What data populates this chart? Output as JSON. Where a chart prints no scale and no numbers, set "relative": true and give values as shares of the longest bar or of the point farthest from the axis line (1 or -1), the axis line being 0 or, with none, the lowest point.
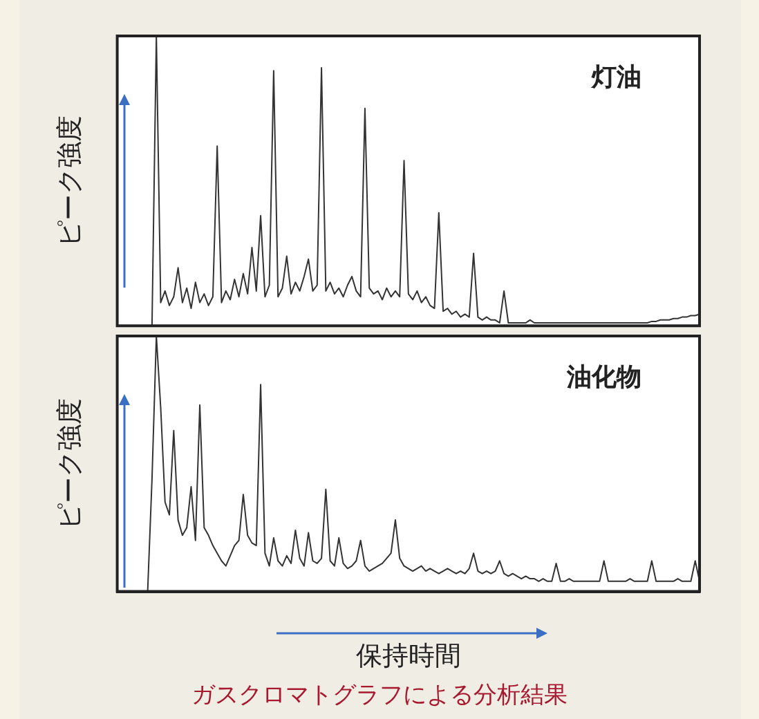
{
  "chart_data": [
    {
      "type": "line",
      "relative": true,
      "ylabel": "ピーク強度",
      "annotations": [
        "灯油"
      ],
      "legend": false,
      "marker": "none",
      "categories": [
        null,
        null,
        null,
        null,
        null,
        null,
        null,
        null,
        null,
        null,
        null,
        null,
        null,
        null,
        null,
        null,
        null,
        null,
        null,
        null,
        null,
        null,
        null,
        null,
        null,
        null,
        null,
        null,
        null,
        null,
        null,
        null,
        null,
        null,
        null,
        null,
        null,
        null,
        null,
        null,
        null,
        null,
        null,
        null,
        null,
        null,
        null,
        null,
        null,
        null,
        null,
        null,
        null,
        null,
        null,
        null,
        null,
        null,
        null,
        null,
        null,
        null,
        null,
        null,
        null,
        null,
        null,
        null,
        null,
        null,
        null,
        null,
        null,
        null,
        null,
        null,
        null,
        null,
        null,
        null,
        null,
        null,
        null,
        null,
        null,
        null,
        null,
        null,
        null,
        null,
        null,
        null,
        null,
        null,
        null,
        null,
        null,
        null,
        null,
        null,
        null,
        null,
        null,
        null,
        null,
        null,
        null,
        null,
        null,
        null,
        null,
        null,
        null,
        null,
        null,
        null,
        null,
        null,
        null,
        null,
        null,
        null,
        null,
        null,
        null,
        null,
        null,
        null,
        null,
        null,
        null,
        null,
        null,
        null,
        null
      ],
      "series": [
        {
          "color": "#333333",
          "values": [
            0,
            0,
            0,
            0,
            0,
            0,
            0,
            0,
            0,
            1,
            0.08,
            0.12,
            0.07,
            0.1,
            0.2,
            0.08,
            0.13,
            0.06,
            0.15,
            0.08,
            0.11,
            0.07,
            0.1,
            0.62,
            0.08,
            0.12,
            0.09,
            0.16,
            0.1,
            0.18,
            0.11,
            0.27,
            0.12,
            0.38,
            0.1,
            0.14,
            0.88,
            0.1,
            0.13,
            0.24,
            0.11,
            0.15,
            0.12,
            0.17,
            0.23,
            0.12,
            0.14,
            0.89,
            0.12,
            0.15,
            0.11,
            0.13,
            0.1,
            0.14,
            0.17,
            0.12,
            0.1,
            0.75,
            0.13,
            0.11,
            0.12,
            0.09,
            0.13,
            0.1,
            0.12,
            0.1,
            0.57,
            0.11,
            0.09,
            0.12,
            0.08,
            0.1,
            0.07,
            0.06,
            0.39,
            0.05,
            0.06,
            0.04,
            0.05,
            0.03,
            0.04,
            0.03,
            0.25,
            0.03,
            0.02,
            0.03,
            0.02,
            0.02,
            0.01,
            0.12,
            0.01,
            0.01,
            0.01,
            0.01,
            0.01,
            0.02,
            0.01,
            0.01,
            0.01,
            0.01,
            0.01,
            0.01,
            0.01,
            0.01,
            0.01,
            0.01,
            0.01,
            0.01,
            0.01,
            0.01,
            0.01,
            0.01,
            0.01,
            0.01,
            0.01,
            0.01,
            0.01,
            0.01,
            0.01,
            0.01,
            0.01,
            0.01,
            0.01,
            0.015,
            0.015,
            0.02,
            0.02,
            0.02,
            0.025,
            0.025,
            0.03,
            0.03,
            0.035,
            0.035,
            0.04
          ]
        }
      ]
    },
    {
      "type": "line",
      "relative": true,
      "ylabel": "ピーク強度",
      "xlabel": "保持時間",
      "annotations": [
        "油化物",
        "ガスクロマトグラフによる分析結果"
      ],
      "legend": false,
      "marker": "none",
      "categories": [
        null,
        null,
        null,
        null,
        null,
        null,
        null,
        null,
        null,
        null,
        null,
        null,
        null,
        null,
        null,
        null,
        null,
        null,
        null,
        null,
        null,
        null,
        null,
        null,
        null,
        null,
        null,
        null,
        null,
        null,
        null,
        null,
        null,
        null,
        null,
        null,
        null,
        null,
        null,
        null,
        null,
        null,
        null,
        null,
        null,
        null,
        null,
        null,
        null,
        null,
        null,
        null,
        null,
        null,
        null,
        null,
        null,
        null,
        null,
        null,
        null,
        null,
        null,
        null,
        null,
        null,
        null,
        null,
        null,
        null,
        null,
        null,
        null,
        null,
        null,
        null,
        null,
        null,
        null,
        null,
        null,
        null,
        null,
        null,
        null,
        null,
        null,
        null,
        null,
        null,
        null,
        null,
        null,
        null,
        null,
        null,
        null,
        null,
        null,
        null,
        null,
        null,
        null,
        null,
        null,
        null,
        null,
        null,
        null,
        null,
        null,
        null,
        null,
        null,
        null,
        null,
        null,
        null,
        null,
        null,
        null,
        null,
        null,
        null,
        null,
        null,
        null,
        null,
        null,
        null,
        null,
        null,
        null,
        null,
        null
      ],
      "series": [
        {
          "color": "#333333",
          "values": [
            0,
            0,
            0,
            0,
            0,
            0,
            0,
            0,
            0.44,
            1,
            0.72,
            0.35,
            0.3,
            0.63,
            0.28,
            0.22,
            0.25,
            0.41,
            0.2,
            0.73,
            0.25,
            0.22,
            0.18,
            0.15,
            0.12,
            0.1,
            0.14,
            0.18,
            0.2,
            0.38,
            0.22,
            0.19,
            0.18,
            0.81,
            0.15,
            0.1,
            0.21,
            0.12,
            0.1,
            0.14,
            0.11,
            0.24,
            0.13,
            0.1,
            0.23,
            0.12,
            0.11,
            0.13,
            0.4,
            0.12,
            0.1,
            0.21,
            0.11,
            0.09,
            0.1,
            0.12,
            0.2,
            0.1,
            0.08,
            0.09,
            0.1,
            0.11,
            0.13,
            0.15,
            0.28,
            0.13,
            0.1,
            0.09,
            0.08,
            0.09,
            0.1,
            0.08,
            0.09,
            0.08,
            0.07,
            0.08,
            0.09,
            0.08,
            0.07,
            0.08,
            0.07,
            0.09,
            0.15,
            0.08,
            0.07,
            0.08,
            0.07,
            0.08,
            0.12,
            0.07,
            0.06,
            0.07,
            0.06,
            0.05,
            0.06,
            0.05,
            0.05,
            0.04,
            0.05,
            0.04,
            0.04,
            0.11,
            0.04,
            0.04,
            0.05,
            0.04,
            0.04,
            0.04,
            0.04,
            0.04,
            0.04,
            0.04,
            0.12,
            0.04,
            0.04,
            0.04,
            0.04,
            0.04,
            0.05,
            0.04,
            0.04,
            0.04,
            0.04,
            0.12,
            0.04,
            0.04,
            0.04,
            0.04,
            0.04,
            0.05,
            0.04,
            0.04,
            0.04,
            0.12,
            0.04
          ]
        }
      ]
    }
  ]
}
